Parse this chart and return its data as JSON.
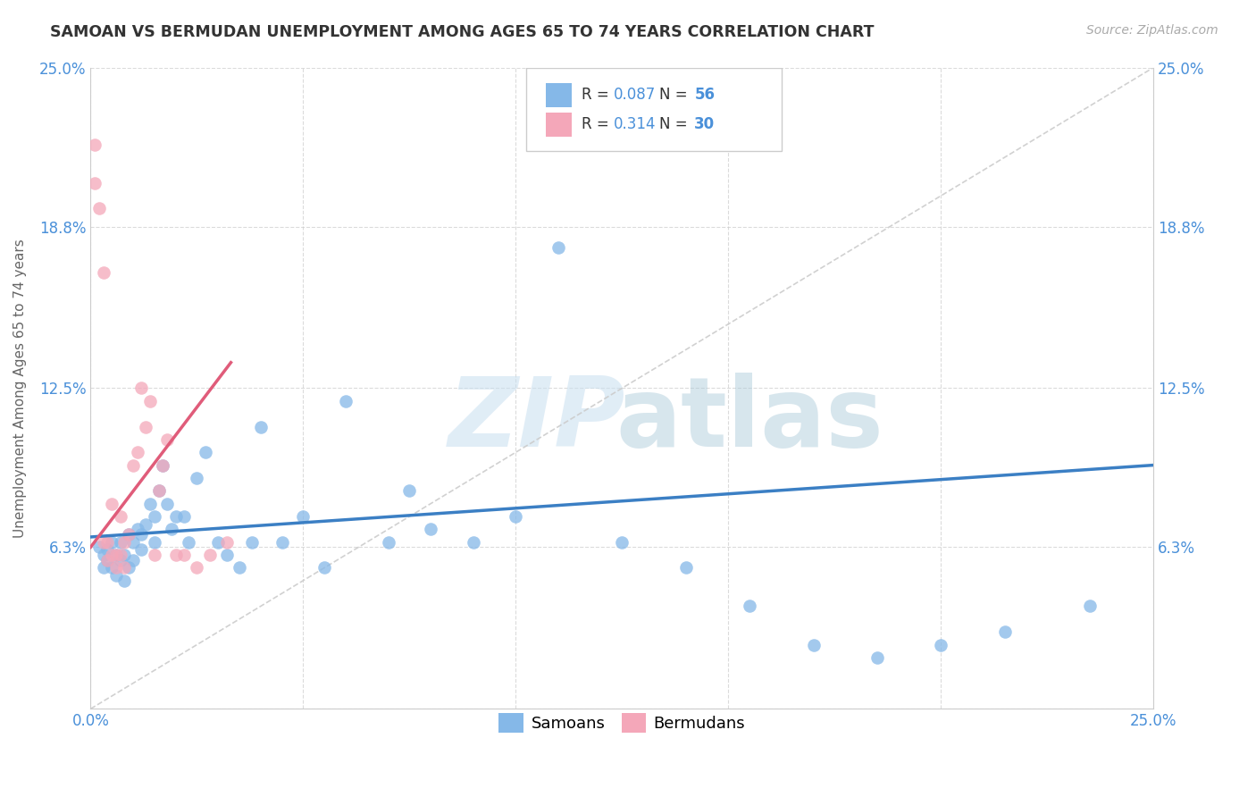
{
  "title": "SAMOAN VS BERMUDAN UNEMPLOYMENT AMONG AGES 65 TO 74 YEARS CORRELATION CHART",
  "source": "Source: ZipAtlas.com",
  "ylabel": "Unemployment Among Ages 65 to 74 years",
  "xlim": [
    0,
    0.25
  ],
  "ylim": [
    0,
    0.25
  ],
  "samoans_r": 0.087,
  "samoans_n": 56,
  "bermudans_r": 0.314,
  "bermudans_n": 30,
  "scatter_color_samoans": "#85b8e8",
  "scatter_color_bermudans": "#f4a7b9",
  "line_color_samoans": "#3b7fc4",
  "line_color_bermudans": "#e05c7a",
  "samoans_x": [
    0.002,
    0.003,
    0.003,
    0.004,
    0.004,
    0.005,
    0.005,
    0.006,
    0.006,
    0.007,
    0.007,
    0.008,
    0.008,
    0.009,
    0.009,
    0.01,
    0.01,
    0.011,
    0.012,
    0.012,
    0.013,
    0.014,
    0.015,
    0.015,
    0.016,
    0.017,
    0.018,
    0.019,
    0.02,
    0.022,
    0.023,
    0.025,
    0.027,
    0.03,
    0.032,
    0.035,
    0.038,
    0.04,
    0.045,
    0.05,
    0.055,
    0.06,
    0.07,
    0.075,
    0.08,
    0.09,
    0.1,
    0.11,
    0.125,
    0.14,
    0.155,
    0.17,
    0.185,
    0.2,
    0.215,
    0.235
  ],
  "samoans_y": [
    0.063,
    0.055,
    0.06,
    0.058,
    0.062,
    0.055,
    0.065,
    0.052,
    0.06,
    0.058,
    0.065,
    0.05,
    0.06,
    0.055,
    0.068,
    0.058,
    0.065,
    0.07,
    0.062,
    0.068,
    0.072,
    0.08,
    0.065,
    0.075,
    0.085,
    0.095,
    0.08,
    0.07,
    0.075,
    0.075,
    0.065,
    0.09,
    0.1,
    0.065,
    0.06,
    0.055,
    0.065,
    0.11,
    0.065,
    0.075,
    0.055,
    0.12,
    0.065,
    0.085,
    0.07,
    0.065,
    0.075,
    0.18,
    0.065,
    0.055,
    0.04,
    0.025,
    0.02,
    0.025,
    0.03,
    0.04
  ],
  "bermudans_x": [
    0.001,
    0.001,
    0.002,
    0.003,
    0.003,
    0.004,
    0.004,
    0.005,
    0.005,
    0.006,
    0.006,
    0.007,
    0.007,
    0.008,
    0.008,
    0.009,
    0.01,
    0.011,
    0.012,
    0.013,
    0.014,
    0.015,
    0.016,
    0.017,
    0.018,
    0.02,
    0.022,
    0.025,
    0.028,
    0.032
  ],
  "bermudans_y": [
    0.22,
    0.205,
    0.195,
    0.17,
    0.065,
    0.065,
    0.058,
    0.08,
    0.06,
    0.06,
    0.055,
    0.075,
    0.06,
    0.055,
    0.065,
    0.068,
    0.095,
    0.1,
    0.125,
    0.11,
    0.12,
    0.06,
    0.085,
    0.095,
    0.105,
    0.06,
    0.06,
    0.055,
    0.06,
    0.065
  ]
}
